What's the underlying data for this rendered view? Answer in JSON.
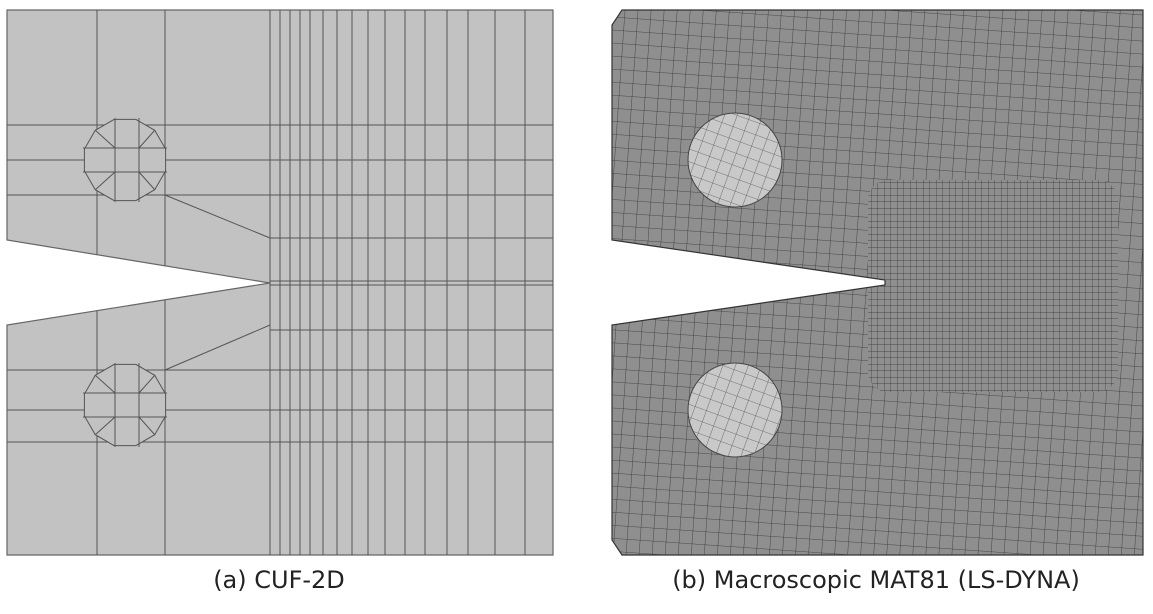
{
  "panels": [
    {
      "caption": "(a) CUF-2D"
    },
    {
      "caption": "(b) Macroscopic MAT81 (LS-DYNA)"
    }
  ]
}
